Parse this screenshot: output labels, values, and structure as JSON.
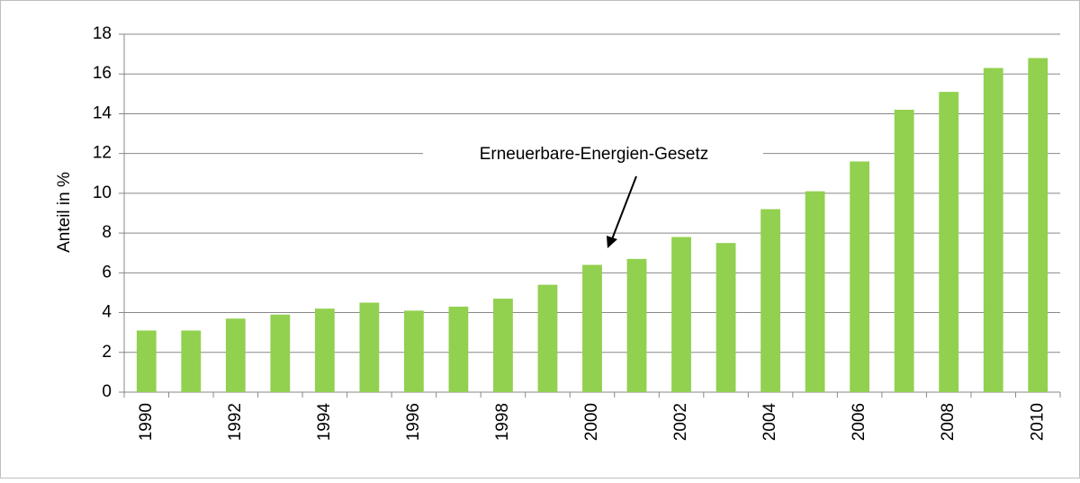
{
  "chart_data": {
    "type": "bar",
    "ylabel": "Anteil in %",
    "annotation": "Erneuerbare-Energien-Gesetz",
    "categories": [
      "1990",
      null,
      "1992",
      null,
      "1994",
      null,
      "1996",
      null,
      "1998",
      null,
      "2000",
      null,
      "2002",
      null,
      "2004",
      null,
      "2006",
      null,
      "2008",
      null,
      "2010"
    ],
    "values": [
      3.1,
      3.1,
      3.7,
      3.9,
      4.2,
      4.5,
      4.1,
      4.3,
      4.7,
      5.4,
      6.4,
      6.7,
      7.8,
      7.5,
      9.2,
      10.1,
      11.6,
      14.2,
      15.1,
      16.3,
      16.8
    ],
    "color": "#92d050",
    "ylim": [
      0,
      18
    ],
    "yticks": [
      0,
      2,
      4,
      6,
      8,
      10,
      12,
      14,
      16,
      18
    ],
    "grid": true
  }
}
